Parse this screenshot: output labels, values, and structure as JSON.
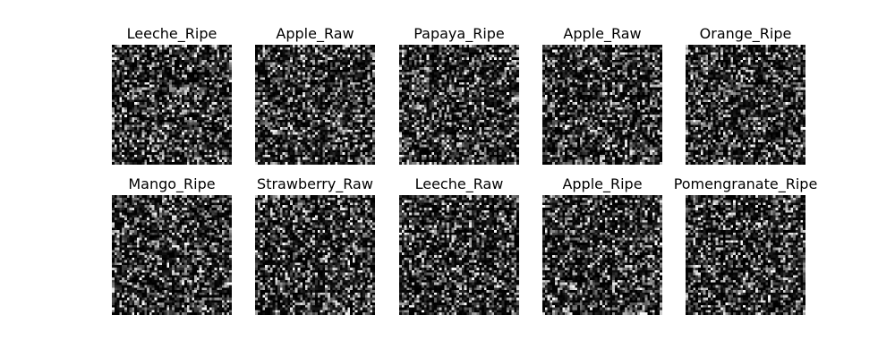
{
  "figure": {
    "background": "#ffffff",
    "colormap": "gray",
    "image_resolution": 48,
    "panels": [
      {
        "title": "Leeche_Ripe"
      },
      {
        "title": "Apple_Raw"
      },
      {
        "title": "Papaya_Ripe"
      },
      {
        "title": "Apple_Raw"
      },
      {
        "title": "Orange_Ripe"
      },
      {
        "title": "Mango_Ripe"
      },
      {
        "title": "Strawberry_Raw"
      },
      {
        "title": "Leeche_Raw"
      },
      {
        "title": "Apple_Ripe"
      },
      {
        "title": "Pomengranate_Ripe"
      }
    ]
  }
}
